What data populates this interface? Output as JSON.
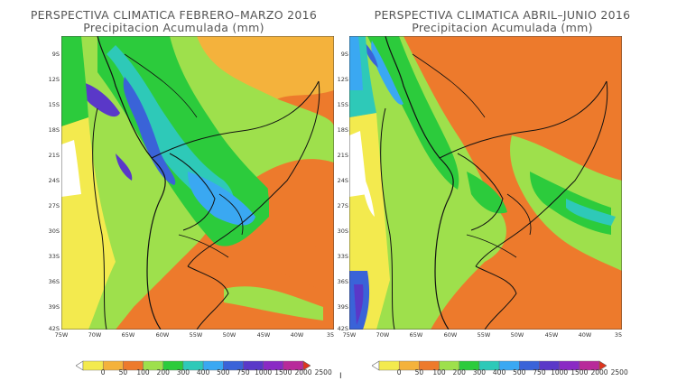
{
  "left": {
    "title_line1": "PERSPECTIVA CLIMATICA FEBRERO–MARZO 2016",
    "title_line2": "Precipitacion Acumulada (mm)"
  },
  "right": {
    "title_line1": "PERSPECTIVA CLIMATICA ABRIL–JUNIO 2016",
    "title_line2": "Precipitacion Acumulada (mm)"
  },
  "lat_ticks": [
    "9S",
    "12S",
    "15S",
    "18S",
    "21S",
    "24S",
    "27S",
    "30S",
    "33S",
    "36S",
    "39S",
    "42S"
  ],
  "lon_ticks": [
    "75W",
    "70W",
    "65W",
    "60W",
    "55W",
    "50W",
    "45W",
    "40W",
    "35"
  ],
  "colorbar": {
    "labels": [
      "0",
      "50",
      "100",
      "200",
      "300",
      "400",
      "500",
      "750",
      "1000",
      "1500",
      "2000",
      "2500"
    ],
    "colors": [
      "#ffffff",
      "#f3ea4e",
      "#f4b23c",
      "#ed7a2c",
      "#9ee04c",
      "#2ccb3c",
      "#2ec9b8",
      "#3aa8f2",
      "#3a63d8",
      "#5a38c8",
      "#8a2ac4",
      "#b82a9a",
      "#e0341c"
    ]
  },
  "colors": {
    "white": "#ffffff",
    "yellow": "#f3ea4e",
    "light_orange": "#f4b23c",
    "orange": "#ed7a2c",
    "light_green": "#9ee04c",
    "green": "#2ccb3c",
    "teal": "#2ec9b8",
    "light_blue": "#3aa8f2",
    "blue": "#3a63d8",
    "purple": "#5a38c8"
  },
  "footer_mark": "I"
}
